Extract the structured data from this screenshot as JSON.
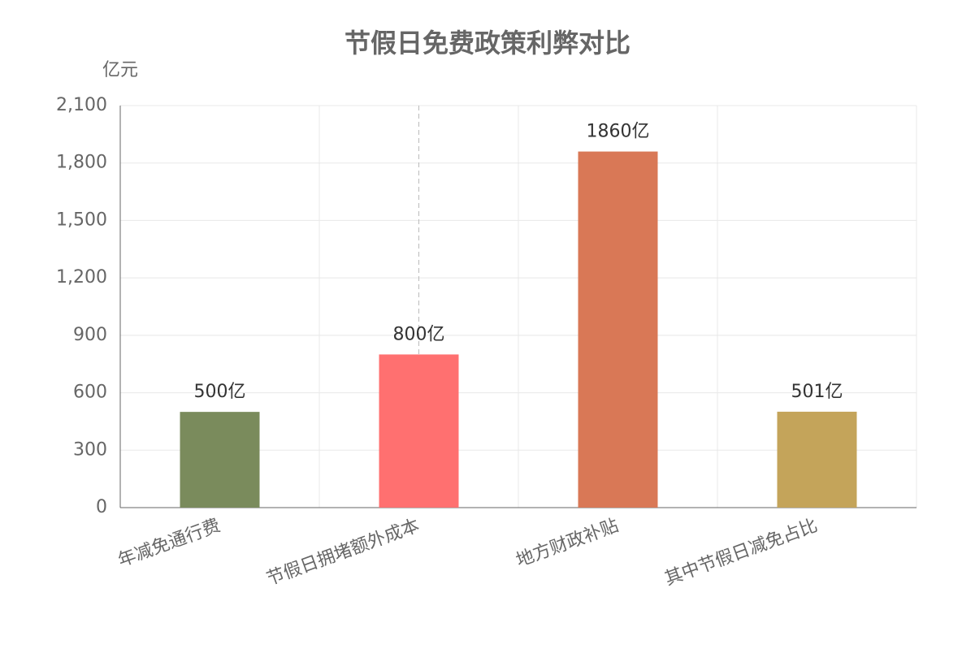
{
  "chart_data": {
    "type": "bar",
    "title": "节假日免费政策利弊对比",
    "y_label": "亿元",
    "categories": [
      "年减免通行费",
      "节假日拥堵额外成本",
      "地方财政补贴",
      "其中节假日减免占比"
    ],
    "values": [
      500,
      800,
      1860,
      501
    ],
    "value_labels": [
      "500亿",
      "800亿",
      "1860亿",
      "501亿"
    ],
    "colors": [
      "#7a8b5c",
      "#ff7070",
      "#d97856",
      "#c4a45a"
    ],
    "ylim": [
      0,
      2100
    ],
    "yticks": [
      0,
      300,
      600,
      900,
      {
        "value": 1200,
        "label": "1,200"
      },
      {
        "value": 1500,
        "label": "1,500"
      },
      {
        "value": 1800,
        "label": "1,800"
      },
      {
        "value": 2100,
        "label": "2,100"
      }
    ],
    "grid": true
  }
}
